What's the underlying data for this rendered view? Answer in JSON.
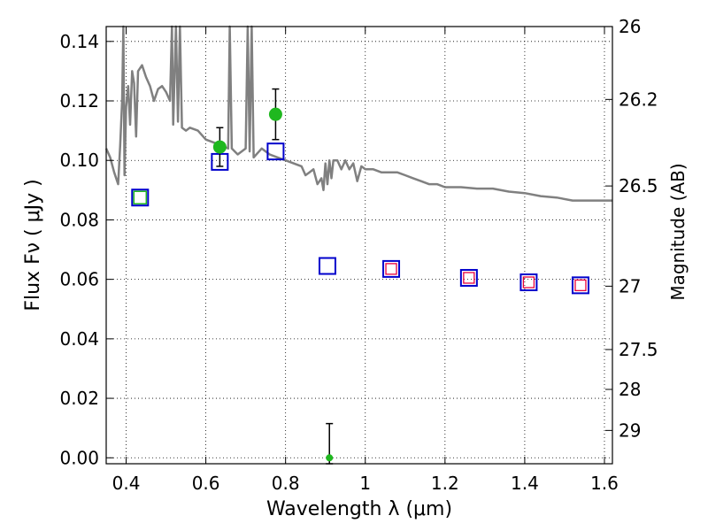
{
  "chart_data": {
    "type": "scatter",
    "xlabel": "Wavelength  λ (μm)",
    "ylabel": "Flux  Fν  ( μJy )",
    "y2label": "Magnitude (AB)",
    "xlim": [
      0.35,
      1.62
    ],
    "ylim": [
      -0.002,
      0.145
    ],
    "x_ticks": [
      0.4,
      0.6,
      0.8,
      1.0,
      1.2,
      1.4,
      1.6
    ],
    "x_tick_labels": [
      "0.4",
      "0.6",
      "0.8",
      "1",
      "1.2",
      "1.4",
      "1.6"
    ],
    "y_ticks": [
      0.0,
      0.02,
      0.04,
      0.06,
      0.08,
      0.1,
      0.12,
      0.14
    ],
    "y_tick_labels": [
      "0.00",
      "0.02",
      "0.04",
      "0.06",
      "0.08",
      "0.10",
      "0.12",
      "0.14"
    ],
    "mag_ticks": [
      {
        "label": "26",
        "flux": 0.145
      },
      {
        "label": "26.2",
        "flux": 0.1205
      },
      {
        "label": "26.5",
        "flux": 0.0914
      },
      {
        "label": "27",
        "flux": 0.0577
      },
      {
        "label": "27.5",
        "flux": 0.0364
      },
      {
        "label": "28",
        "flux": 0.023
      },
      {
        "label": "29",
        "flux": 0.0092
      }
    ],
    "grid": true,
    "colors": {
      "model": "#808080",
      "observed": "#1fb81f",
      "model_box": "#0000cc",
      "ir_box": "#e8003a",
      "green_box": "#1fb81f",
      "errorbar": "#000000"
    },
    "model_spectrum": [
      [
        0.35,
        0.104
      ],
      [
        0.36,
        0.101
      ],
      [
        0.37,
        0.096
      ],
      [
        0.38,
        0.092
      ],
      [
        0.385,
        0.105
      ],
      [
        0.39,
        0.12
      ],
      [
        0.393,
        0.145
      ],
      [
        0.396,
        0.095
      ],
      [
        0.4,
        0.118
      ],
      [
        0.405,
        0.125
      ],
      [
        0.41,
        0.112
      ],
      [
        0.415,
        0.13
      ],
      [
        0.42,
        0.126
      ],
      [
        0.425,
        0.108
      ],
      [
        0.43,
        0.13
      ],
      [
        0.44,
        0.132
      ],
      [
        0.45,
        0.128
      ],
      [
        0.46,
        0.125
      ],
      [
        0.47,
        0.12
      ],
      [
        0.48,
        0.124
      ],
      [
        0.49,
        0.125
      ],
      [
        0.5,
        0.123
      ],
      [
        0.51,
        0.12
      ],
      [
        0.515,
        0.145
      ],
      [
        0.518,
        0.112
      ],
      [
        0.525,
        0.145
      ],
      [
        0.53,
        0.113
      ],
      [
        0.535,
        0.145
      ],
      [
        0.54,
        0.111
      ],
      [
        0.55,
        0.11
      ],
      [
        0.56,
        0.111
      ],
      [
        0.58,
        0.11
      ],
      [
        0.6,
        0.107
      ],
      [
        0.62,
        0.106
      ],
      [
        0.64,
        0.105
      ],
      [
        0.656,
        0.104
      ],
      [
        0.66,
        0.145
      ],
      [
        0.665,
        0.104
      ],
      [
        0.68,
        0.102
      ],
      [
        0.7,
        0.104
      ],
      [
        0.705,
        0.145
      ],
      [
        0.71,
        0.103
      ],
      [
        0.715,
        0.145
      ],
      [
        0.72,
        0.101
      ],
      [
        0.74,
        0.104
      ],
      [
        0.76,
        0.102
      ],
      [
        0.78,
        0.101
      ],
      [
        0.8,
        0.1
      ],
      [
        0.82,
        0.099
      ],
      [
        0.84,
        0.098
      ],
      [
        0.85,
        0.095
      ],
      [
        0.86,
        0.096
      ],
      [
        0.87,
        0.097
      ],
      [
        0.88,
        0.092
      ],
      [
        0.89,
        0.094
      ],
      [
        0.895,
        0.09
      ],
      [
        0.9,
        0.099
      ],
      [
        0.905,
        0.092
      ],
      [
        0.91,
        0.1
      ],
      [
        0.915,
        0.094
      ],
      [
        0.92,
        0.1
      ],
      [
        0.93,
        0.1
      ],
      [
        0.94,
        0.097
      ],
      [
        0.95,
        0.1
      ],
      [
        0.96,
        0.097
      ],
      [
        0.97,
        0.099
      ],
      [
        0.98,
        0.093
      ],
      [
        0.99,
        0.098
      ],
      [
        1.0,
        0.097
      ],
      [
        1.02,
        0.097
      ],
      [
        1.04,
        0.096
      ],
      [
        1.06,
        0.096
      ],
      [
        1.08,
        0.096
      ],
      [
        1.1,
        0.095
      ],
      [
        1.12,
        0.094
      ],
      [
        1.14,
        0.093
      ],
      [
        1.16,
        0.092
      ],
      [
        1.18,
        0.092
      ],
      [
        1.2,
        0.091
      ],
      [
        1.24,
        0.091
      ],
      [
        1.28,
        0.0905
      ],
      [
        1.32,
        0.0905
      ],
      [
        1.36,
        0.0895
      ],
      [
        1.4,
        0.089
      ],
      [
        1.44,
        0.088
      ],
      [
        1.48,
        0.0875
      ],
      [
        1.52,
        0.0865
      ],
      [
        1.56,
        0.0865
      ],
      [
        1.6,
        0.0865
      ],
      [
        1.62,
        0.0865
      ]
    ],
    "observed_points": [
      {
        "x": 0.635,
        "y": 0.1045,
        "yerr": 0.0065
      },
      {
        "x": 0.775,
        "y": 0.1155,
        "yerr": 0.0085
      },
      {
        "x": 0.91,
        "y": 0.0,
        "yerr": 0.0115
      }
    ],
    "model_boxes": [
      {
        "x": 0.435,
        "y": 0.0875,
        "inner": "green"
      },
      {
        "x": 0.635,
        "y": 0.0995,
        "inner": "none"
      },
      {
        "x": 0.775,
        "y": 0.103,
        "inner": "none"
      },
      {
        "x": 0.905,
        "y": 0.0645,
        "inner": "none"
      },
      {
        "x": 1.065,
        "y": 0.0635,
        "inner": "red"
      },
      {
        "x": 1.26,
        "y": 0.0605,
        "inner": "red"
      },
      {
        "x": 1.41,
        "y": 0.059,
        "inner": "red"
      },
      {
        "x": 1.54,
        "y": 0.058,
        "inner": "red"
      }
    ]
  }
}
